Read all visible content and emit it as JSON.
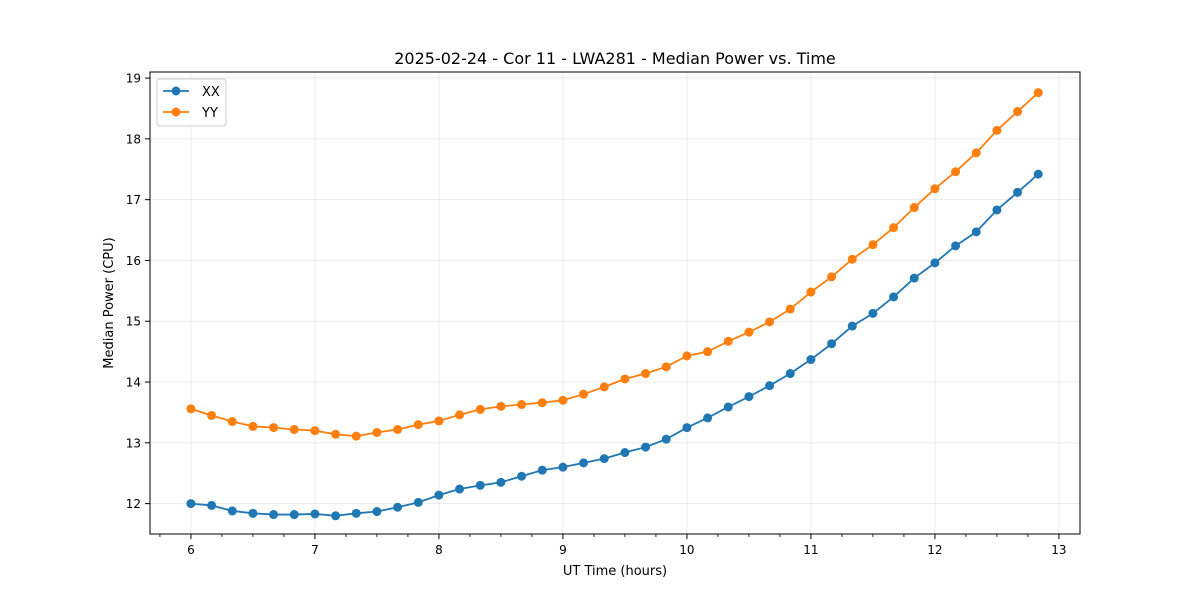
{
  "chart_data": {
    "type": "line",
    "title": "2025-02-24 - Cor 11 - LWA281 - Median Power vs. Time",
    "xlabel": "UT Time (hours)",
    "ylabel": "Median Power (CPU)",
    "xlim": [
      5.67,
      13.17
    ],
    "ylim": [
      11.5,
      19.1
    ],
    "xticks": [
      6,
      7,
      8,
      9,
      10,
      11,
      12,
      13
    ],
    "yticks": [
      12,
      13,
      14,
      15,
      16,
      17,
      18,
      19
    ],
    "grid": true,
    "legend_position": "top-left",
    "x": [
      6.0,
      6.1667,
      6.3333,
      6.5,
      6.6667,
      6.8333,
      7.0,
      7.1667,
      7.3333,
      7.5,
      7.6667,
      7.8333,
      8.0,
      8.1667,
      8.3333,
      8.5,
      8.6667,
      8.8333,
      9.0,
      9.1667,
      9.3333,
      9.5,
      9.6667,
      9.8333,
      10.0,
      10.1667,
      10.3333,
      10.5,
      10.6667,
      10.8333,
      11.0,
      11.1667,
      11.3333,
      11.5,
      11.6667,
      11.8333,
      12.0,
      12.1667,
      12.3333,
      12.5,
      12.6667,
      12.8333
    ],
    "series": [
      {
        "name": "XX",
        "color": "#1f77b4",
        "values": [
          12.0,
          11.97,
          11.88,
          11.84,
          11.82,
          11.82,
          11.83,
          11.8,
          11.84,
          11.87,
          11.94,
          12.02,
          12.14,
          12.24,
          12.3,
          12.35,
          12.45,
          12.55,
          12.6,
          12.67,
          12.74,
          12.84,
          12.93,
          13.06,
          13.25,
          13.41,
          13.59,
          13.76,
          13.94,
          14.14,
          14.37,
          14.63,
          14.92,
          15.13,
          15.4,
          15.71,
          15.96,
          16.24,
          16.47,
          16.83,
          17.12,
          17.42
        ]
      },
      {
        "name": "YY",
        "color": "#ff7f0e",
        "values": [
          13.56,
          13.45,
          13.35,
          13.27,
          13.25,
          13.22,
          13.2,
          13.14,
          13.11,
          13.17,
          13.22,
          13.3,
          13.36,
          13.46,
          13.55,
          13.6,
          13.63,
          13.66,
          13.7,
          13.8,
          13.92,
          14.05,
          14.14,
          14.25,
          14.43,
          14.5,
          14.67,
          14.82,
          14.99,
          15.2,
          15.48,
          15.73,
          16.02,
          16.26,
          16.54,
          16.87,
          17.18,
          17.46,
          17.77,
          18.14,
          18.45,
          18.76
        ]
      }
    ]
  }
}
